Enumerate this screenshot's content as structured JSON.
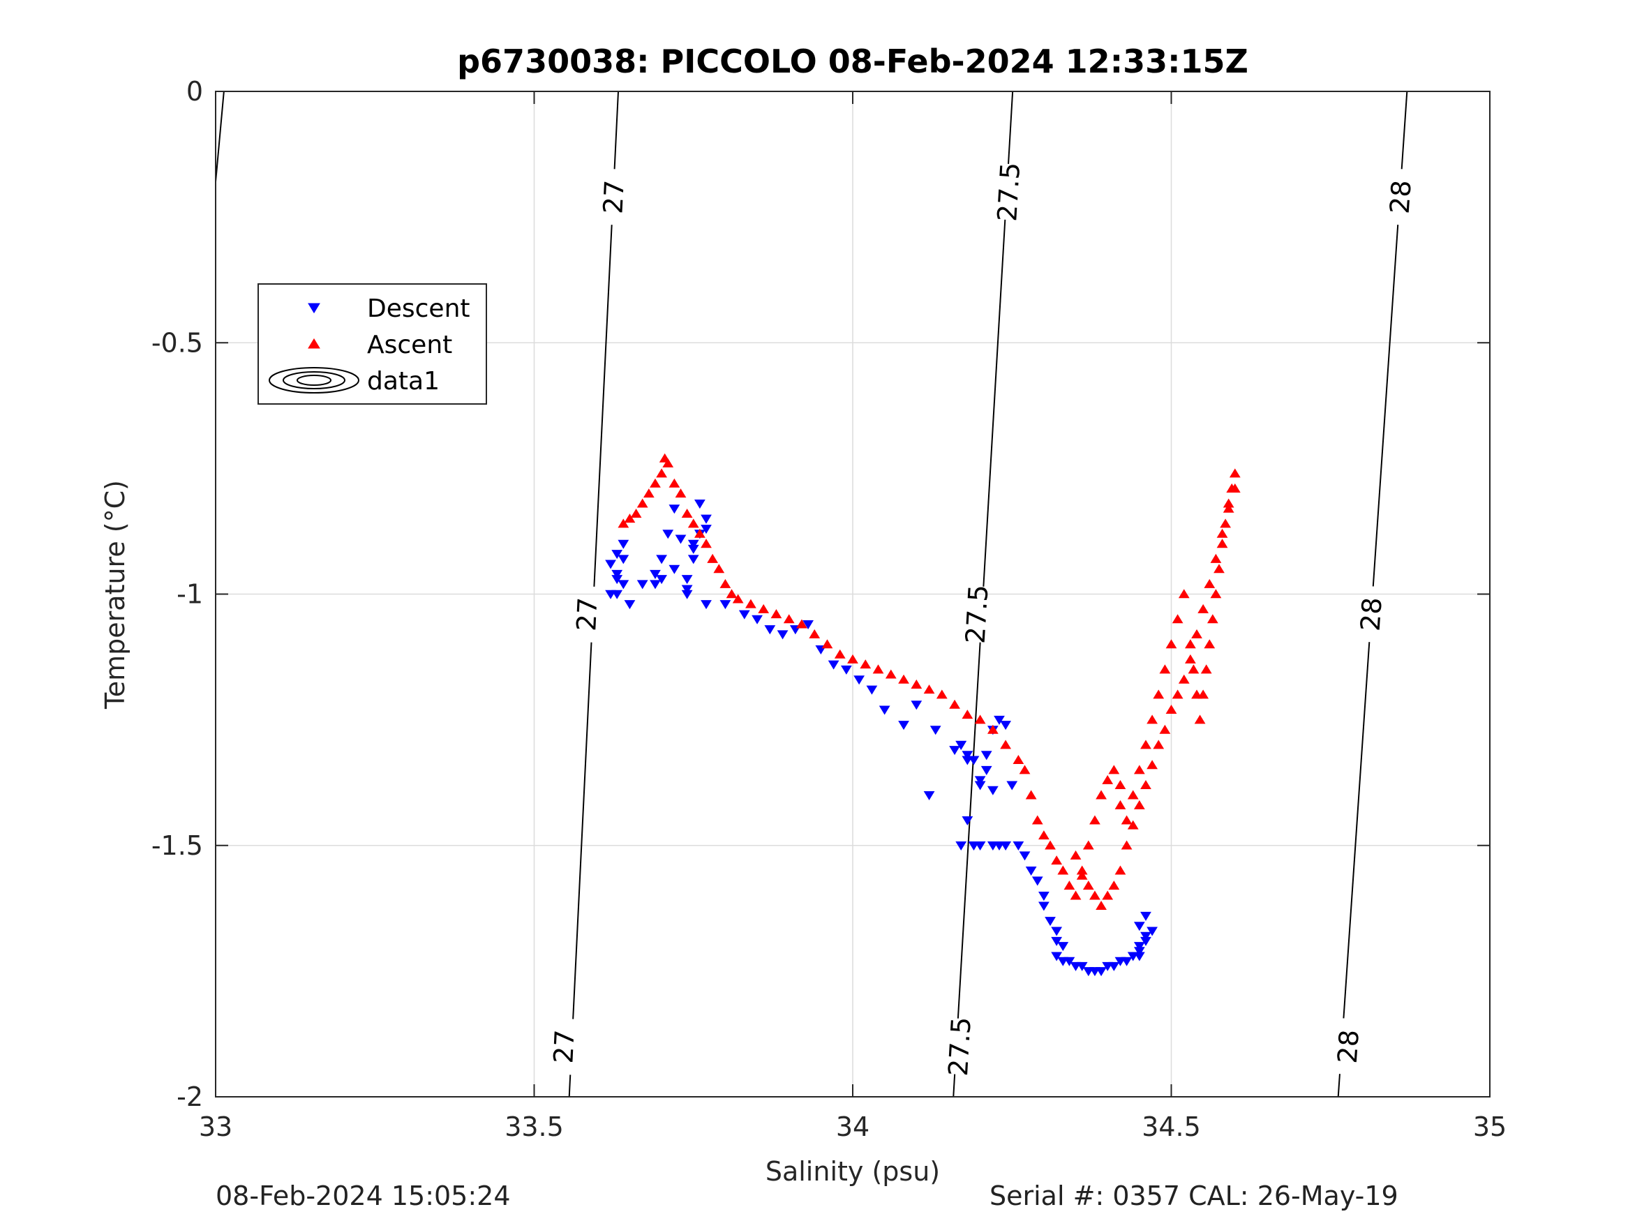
{
  "chart_data": {
    "type": "scatter",
    "title": "p6730038: PICCOLO 08-Feb-2024 12:33:15Z",
    "xlabel": "Salinity (psu)",
    "ylabel": "Temperature (°C)",
    "xlim": [
      33,
      35
    ],
    "ylim": [
      -2,
      0
    ],
    "xticks": [
      "33",
      "33.5",
      "34",
      "34.5",
      "35"
    ],
    "yticks": [
      "0",
      "-0.5",
      "-1",
      "-1.5",
      "-2"
    ],
    "grid": true,
    "legend_position": "top-left",
    "legend": [
      {
        "name": "Descent",
        "marker": "triangle-down",
        "color": "#0000ff"
      },
      {
        "name": "Ascent",
        "marker": "triangle-up",
        "color": "#ff0000"
      },
      {
        "name": "data1",
        "marker": "contour",
        "color": "#000000"
      }
    ],
    "contours": [
      {
        "label": "27",
        "points": [
          [
            33.013,
            0
          ],
          [
            33.0,
            -0.18
          ]
        ],
        "label_at": [],
        "note": "segment"
      },
      {
        "label": "27",
        "points": [
          [
            33.632,
            0
          ],
          [
            33.555,
            -2
          ]
        ],
        "label_at": [
          [
            33.625,
            -0.21
          ],
          [
            33.583,
            -1.04
          ],
          [
            33.547,
            -1.9
          ]
        ]
      },
      {
        "label": "27.5",
        "points": [
          [
            34.251,
            0
          ],
          [
            34.158,
            -2
          ]
        ],
        "label_at": [
          [
            34.245,
            -0.2
          ],
          [
            34.195,
            -1.04
          ],
          [
            34.168,
            -1.9
          ]
        ]
      },
      {
        "label": "28",
        "points": [
          [
            34.87,
            0
          ],
          [
            34.762,
            -2
          ]
        ],
        "label_at": [
          [
            34.86,
            -0.21
          ],
          [
            34.814,
            -1.04
          ],
          [
            34.778,
            -1.9
          ]
        ]
      }
    ],
    "series": [
      {
        "name": "Descent",
        "color": "#0000ff",
        "marker": "triangle-down",
        "x": [
          33.64,
          33.63,
          33.62,
          33.63,
          33.64,
          33.63,
          33.62,
          33.63,
          33.64,
          33.65,
          33.67,
          33.69,
          33.69,
          33.7,
          33.7,
          33.71,
          33.72,
          33.74,
          33.75,
          33.75,
          33.76,
          33.77,
          33.77,
          33.76,
          33.75,
          33.74,
          33.73,
          33.72,
          33.74,
          33.77,
          33.8,
          33.83,
          33.85,
          33.87,
          33.89,
          33.91,
          33.93,
          33.95,
          33.97,
          33.99,
          34.01,
          34.03,
          34.05,
          34.08,
          34.1,
          34.12,
          34.13,
          34.16,
          34.17,
          34.18,
          34.2,
          34.18,
          34.17,
          34.19,
          34.2,
          34.22,
          34.23,
          34.24,
          34.22,
          34.21,
          34.19,
          34.18,
          34.17,
          34.2,
          34.21,
          34.22,
          34.23,
          34.24,
          34.25,
          34.26,
          34.27,
          34.28,
          34.29,
          34.3,
          34.3,
          34.31,
          34.32,
          34.32,
          34.33,
          34.32,
          34.33,
          34.34,
          34.35,
          34.36,
          34.37,
          34.38,
          34.39,
          34.4,
          34.41,
          34.42,
          34.43,
          34.44,
          34.45,
          34.46,
          34.45,
          34.47,
          34.46,
          34.45,
          34.46,
          34.45
        ],
        "y": [
          -0.9,
          -0.92,
          -0.94,
          -0.96,
          -0.98,
          -1.0,
          -1.0,
          -0.97,
          -0.93,
          -1.02,
          -0.98,
          -0.96,
          -0.98,
          -0.97,
          -0.93,
          -0.88,
          -0.95,
          -0.99,
          -0.93,
          -0.9,
          -0.88,
          -0.87,
          -0.85,
          -0.82,
          -0.91,
          -0.97,
          -0.89,
          -0.83,
          -1.0,
          -1.02,
          -1.02,
          -1.04,
          -1.05,
          -1.07,
          -1.08,
          -1.07,
          -1.06,
          -1.11,
          -1.14,
          -1.15,
          -1.17,
          -1.19,
          -1.23,
          -1.26,
          -1.22,
          -1.4,
          -1.27,
          -1.31,
          -1.3,
          -1.33,
          -1.38,
          -1.45,
          -1.5,
          -1.5,
          -1.5,
          -1.5,
          -1.5,
          -1.5,
          -1.39,
          -1.35,
          -1.33,
          -1.32,
          -1.3,
          -1.37,
          -1.32,
          -1.27,
          -1.25,
          -1.26,
          -1.38,
          -1.5,
          -1.52,
          -1.55,
          -1.57,
          -1.6,
          -1.62,
          -1.65,
          -1.67,
          -1.69,
          -1.7,
          -1.72,
          -1.73,
          -1.73,
          -1.74,
          -1.74,
          -1.75,
          -1.75,
          -1.75,
          -1.74,
          -1.74,
          -1.73,
          -1.73,
          -1.72,
          -1.7,
          -1.68,
          -1.66,
          -1.67,
          -1.69,
          -1.72,
          -1.64,
          -1.71
        ]
      },
      {
        "name": "Ascent",
        "color": "#ff0000",
        "marker": "triangle-up",
        "x": [
          33.64,
          33.65,
          33.66,
          33.67,
          33.68,
          33.69,
          33.7,
          33.705,
          33.71,
          33.72,
          33.73,
          33.74,
          33.75,
          33.76,
          33.77,
          33.78,
          33.79,
          33.8,
          33.81,
          33.82,
          33.84,
          33.86,
          33.88,
          33.9,
          33.92,
          33.94,
          33.96,
          33.98,
          34.0,
          34.02,
          34.04,
          34.06,
          34.08,
          34.1,
          34.12,
          34.14,
          34.16,
          34.18,
          34.2,
          34.22,
          34.24,
          34.26,
          34.27,
          34.28,
          34.29,
          34.3,
          34.31,
          34.32,
          34.33,
          34.34,
          34.35,
          34.36,
          34.37,
          34.38,
          34.39,
          34.4,
          34.41,
          34.42,
          34.42,
          34.43,
          34.44,
          34.45,
          34.46,
          34.47,
          34.48,
          34.49,
          34.5,
          34.51,
          34.52,
          34.53,
          34.535,
          34.54,
          34.545,
          34.55,
          34.555,
          34.56,
          34.565,
          34.57,
          34.575,
          34.58,
          34.585,
          34.59,
          34.595,
          34.6,
          34.6,
          34.59,
          34.58,
          34.57,
          34.56,
          34.55,
          34.54,
          34.53,
          34.52,
          34.51,
          34.5,
          34.49,
          34.48,
          34.47,
          34.46,
          34.45,
          34.44,
          34.43,
          34.42,
          34.41,
          34.4,
          34.39,
          34.38,
          34.37,
          34.36,
          34.35
        ],
        "y": [
          -0.86,
          -0.85,
          -0.84,
          -0.82,
          -0.8,
          -0.78,
          -0.76,
          -0.73,
          -0.74,
          -0.78,
          -0.8,
          -0.84,
          -0.86,
          -0.88,
          -0.9,
          -0.93,
          -0.95,
          -0.98,
          -1.0,
          -1.01,
          -1.02,
          -1.03,
          -1.04,
          -1.05,
          -1.06,
          -1.08,
          -1.1,
          -1.12,
          -1.13,
          -1.14,
          -1.15,
          -1.16,
          -1.17,
          -1.18,
          -1.19,
          -1.2,
          -1.22,
          -1.24,
          -1.25,
          -1.27,
          -1.3,
          -1.33,
          -1.35,
          -1.4,
          -1.45,
          -1.48,
          -1.5,
          -1.53,
          -1.55,
          -1.58,
          -1.6,
          -1.56,
          -1.5,
          -1.45,
          -1.4,
          -1.37,
          -1.35,
          -1.38,
          -1.42,
          -1.45,
          -1.4,
          -1.35,
          -1.3,
          -1.25,
          -1.2,
          -1.15,
          -1.1,
          -1.05,
          -1.0,
          -1.1,
          -1.15,
          -1.2,
          -1.25,
          -1.2,
          -1.15,
          -1.1,
          -1.05,
          -1.0,
          -0.95,
          -0.9,
          -0.86,
          -0.82,
          -0.79,
          -0.76,
          -0.79,
          -0.83,
          -0.88,
          -0.93,
          -0.98,
          -1.03,
          -1.08,
          -1.13,
          -1.17,
          -1.2,
          -1.23,
          -1.27,
          -1.3,
          -1.34,
          -1.38,
          -1.42,
          -1.46,
          -1.5,
          -1.55,
          -1.58,
          -1.6,
          -1.62,
          -1.6,
          -1.58,
          -1.55,
          -1.52
        ]
      }
    ]
  },
  "footer": {
    "left": "08-Feb-2024 15:05:24",
    "right": "Serial #: 0357  CAL: 26-May-19"
  }
}
